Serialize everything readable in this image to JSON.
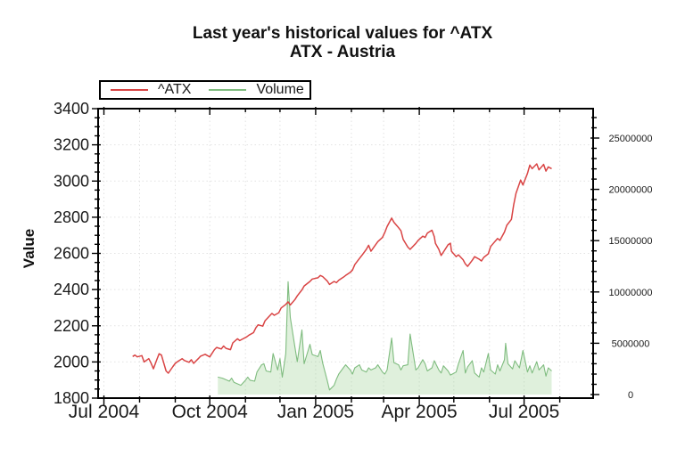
{
  "chart_data": {
    "type": "line",
    "title": "Last year's historical values for ^ATX",
    "subtitle": "ATX - Austria",
    "x_axis": {
      "type": "time",
      "range_start": "2004-06-26",
      "range_end": "2005-08-30",
      "major_ticks": [
        "Jul 2004",
        "Oct 2004",
        "Jan 2005",
        "Apr 2005",
        "Jul 2005"
      ],
      "major_tick_dates": [
        "2004-07-01",
        "2004-10-01",
        "2005-01-01",
        "2005-04-01",
        "2005-07-01"
      ],
      "minor_tick_interval": "1 month"
    },
    "y_left": {
      "label": "Value",
      "min": 1800,
      "max": 3400,
      "major_step": 200,
      "minor_step": 50,
      "tick_labels": [
        "1800",
        "2000",
        "2200",
        "2400",
        "2600",
        "2800",
        "3000",
        "3200",
        "3400"
      ]
    },
    "y_right": {
      "label": "",
      "min": 0,
      "max": 25000000,
      "major_step": 5000000,
      "minor_step": 1000000,
      "tick_labels": [
        "0",
        "5000000",
        "10000000",
        "15000000",
        "20000000",
        "25000000"
      ]
    },
    "grid": {
      "horizontal": "major",
      "vertical": "monthly",
      "style": "dotted",
      "color": "#e2e2e2"
    },
    "legend": {
      "position": "top-left",
      "entries": [
        {
          "label": "^ATX",
          "color": "#d94444"
        },
        {
          "label": "Volume",
          "color": "#7fbc7f"
        }
      ]
    },
    "series": [
      {
        "name": "^ATX",
        "axis": "left",
        "style": "line",
        "color": "#d94444",
        "points": [
          [
            "2004-07-26",
            2030
          ],
          [
            "2004-07-28",
            2038
          ],
          [
            "2004-07-30",
            2028
          ],
          [
            "2004-08-03",
            2035
          ],
          [
            "2004-08-05",
            2000
          ],
          [
            "2004-08-09",
            2018
          ],
          [
            "2004-08-11",
            1993
          ],
          [
            "2004-08-13",
            1962
          ],
          [
            "2004-08-16",
            2012
          ],
          [
            "2004-08-18",
            2045
          ],
          [
            "2004-08-20",
            2038
          ],
          [
            "2004-08-24",
            1950
          ],
          [
            "2004-08-26",
            1938
          ],
          [
            "2004-08-30",
            1975
          ],
          [
            "2004-09-01",
            1992
          ],
          [
            "2004-09-03",
            2002
          ],
          [
            "2004-09-07",
            2018
          ],
          [
            "2004-09-09",
            2008
          ],
          [
            "2004-09-13",
            1998
          ],
          [
            "2004-09-15",
            2012
          ],
          [
            "2004-09-17",
            1992
          ],
          [
            "2004-09-21",
            2018
          ],
          [
            "2004-09-23",
            2032
          ],
          [
            "2004-09-27",
            2042
          ],
          [
            "2004-09-29",
            2035
          ],
          [
            "2004-10-01",
            2028
          ],
          [
            "2004-10-05",
            2068
          ],
          [
            "2004-10-07",
            2080
          ],
          [
            "2004-10-11",
            2072
          ],
          [
            "2004-10-13",
            2088
          ],
          [
            "2004-10-15",
            2075
          ],
          [
            "2004-10-19",
            2068
          ],
          [
            "2004-10-21",
            2105
          ],
          [
            "2004-10-25",
            2128
          ],
          [
            "2004-10-27",
            2118
          ],
          [
            "2004-10-29",
            2125
          ],
          [
            "2004-11-02",
            2138
          ],
          [
            "2004-11-04",
            2148
          ],
          [
            "2004-11-08",
            2162
          ],
          [
            "2004-11-10",
            2188
          ],
          [
            "2004-11-12",
            2205
          ],
          [
            "2004-11-16",
            2198
          ],
          [
            "2004-11-18",
            2228
          ],
          [
            "2004-11-22",
            2255
          ],
          [
            "2004-11-24",
            2268
          ],
          [
            "2004-11-26",
            2258
          ],
          [
            "2004-11-30",
            2272
          ],
          [
            "2004-12-02",
            2298
          ],
          [
            "2004-12-06",
            2318
          ],
          [
            "2004-12-08",
            2332
          ],
          [
            "2004-12-10",
            2315
          ],
          [
            "2004-12-14",
            2345
          ],
          [
            "2004-12-16",
            2365
          ],
          [
            "2004-12-20",
            2398
          ],
          [
            "2004-12-22",
            2420
          ],
          [
            "2004-12-27",
            2445
          ],
          [
            "2004-12-29",
            2458
          ],
          [
            "2005-01-03",
            2465
          ],
          [
            "2005-01-05",
            2478
          ],
          [
            "2005-01-07",
            2472
          ],
          [
            "2005-01-11",
            2448
          ],
          [
            "2005-01-13",
            2428
          ],
          [
            "2005-01-17",
            2445
          ],
          [
            "2005-01-19",
            2438
          ],
          [
            "2005-01-21",
            2452
          ],
          [
            "2005-01-25",
            2468
          ],
          [
            "2005-01-27",
            2478
          ],
          [
            "2005-01-31",
            2495
          ],
          [
            "2005-02-02",
            2508
          ],
          [
            "2005-02-04",
            2538
          ],
          [
            "2005-02-08",
            2572
          ],
          [
            "2005-02-10",
            2588
          ],
          [
            "2005-02-14",
            2622
          ],
          [
            "2005-02-16",
            2645
          ],
          [
            "2005-02-18",
            2612
          ],
          [
            "2005-02-22",
            2648
          ],
          [
            "2005-02-24",
            2665
          ],
          [
            "2005-02-28",
            2688
          ],
          [
            "2005-03-02",
            2715
          ],
          [
            "2005-03-04",
            2748
          ],
          [
            "2005-03-08",
            2795
          ],
          [
            "2005-03-10",
            2772
          ],
          [
            "2005-03-14",
            2742
          ],
          [
            "2005-03-16",
            2725
          ],
          [
            "2005-03-18",
            2678
          ],
          [
            "2005-03-22",
            2635
          ],
          [
            "2005-03-24",
            2622
          ],
          [
            "2005-03-29",
            2655
          ],
          [
            "2005-03-31",
            2672
          ],
          [
            "2005-04-04",
            2695
          ],
          [
            "2005-04-06",
            2688
          ],
          [
            "2005-04-08",
            2712
          ],
          [
            "2005-04-12",
            2728
          ],
          [
            "2005-04-14",
            2692
          ],
          [
            "2005-04-15",
            2655
          ],
          [
            "2005-04-18",
            2622
          ],
          [
            "2005-04-20",
            2588
          ],
          [
            "2005-04-22",
            2608
          ],
          [
            "2005-04-26",
            2648
          ],
          [
            "2005-04-28",
            2656
          ],
          [
            "2005-04-29",
            2612
          ],
          [
            "2005-05-03",
            2582
          ],
          [
            "2005-05-05",
            2592
          ],
          [
            "2005-05-09",
            2565
          ],
          [
            "2005-05-11",
            2542
          ],
          [
            "2005-05-13",
            2528
          ],
          [
            "2005-05-17",
            2562
          ],
          [
            "2005-05-19",
            2582
          ],
          [
            "2005-05-23",
            2568
          ],
          [
            "2005-05-25",
            2558
          ],
          [
            "2005-05-27",
            2578
          ],
          [
            "2005-05-31",
            2598
          ],
          [
            "2005-06-02",
            2638
          ],
          [
            "2005-06-06",
            2668
          ],
          [
            "2005-06-08",
            2682
          ],
          [
            "2005-06-10",
            2672
          ],
          [
            "2005-06-14",
            2718
          ],
          [
            "2005-06-16",
            2755
          ],
          [
            "2005-06-20",
            2788
          ],
          [
            "2005-06-22",
            2868
          ],
          [
            "2005-06-24",
            2932
          ],
          [
            "2005-06-28",
            3005
          ],
          [
            "2005-06-30",
            2978
          ],
          [
            "2005-07-04",
            3042
          ],
          [
            "2005-07-06",
            3088
          ],
          [
            "2005-07-08",
            3068
          ],
          [
            "2005-07-12",
            3095
          ],
          [
            "2005-07-14",
            3062
          ],
          [
            "2005-07-18",
            3092
          ],
          [
            "2005-07-20",
            3055
          ],
          [
            "2005-07-22",
            3078
          ],
          [
            "2005-07-25",
            3068
          ]
        ]
      },
      {
        "name": "Volume",
        "axis": "right",
        "style": "area-line",
        "color": "#7fbc7f",
        "fill": "rgba(150,205,140,0.30)",
        "points": [
          [
            "2004-10-08",
            1700000
          ],
          [
            "2004-10-12",
            1600000
          ],
          [
            "2004-10-14",
            1500000
          ],
          [
            "2004-10-18",
            1300000
          ],
          [
            "2004-10-20",
            1600000
          ],
          [
            "2004-10-22",
            1200000
          ],
          [
            "2004-10-26",
            1000000
          ],
          [
            "2004-10-28",
            900000
          ],
          [
            "2004-11-01",
            1400000
          ],
          [
            "2004-11-03",
            1700000
          ],
          [
            "2004-11-05",
            1400000
          ],
          [
            "2004-11-09",
            1300000
          ],
          [
            "2004-11-11",
            2200000
          ],
          [
            "2004-11-15",
            2900000
          ],
          [
            "2004-11-17",
            3000000
          ],
          [
            "2004-11-19",
            2300000
          ],
          [
            "2004-11-23",
            2200000
          ],
          [
            "2004-11-25",
            4000000
          ],
          [
            "2004-11-29",
            2400000
          ],
          [
            "2004-12-01",
            3500000
          ],
          [
            "2004-12-03",
            1700000
          ],
          [
            "2004-12-06",
            4000000
          ],
          [
            "2004-12-08",
            11000000
          ],
          [
            "2004-12-10",
            7500000
          ],
          [
            "2004-12-14",
            4600000
          ],
          [
            "2004-12-16",
            3200000
          ],
          [
            "2004-12-20",
            6300000
          ],
          [
            "2004-12-22",
            3000000
          ],
          [
            "2004-12-27",
            4900000
          ],
          [
            "2004-12-29",
            3900000
          ],
          [
            "2005-01-03",
            3700000
          ],
          [
            "2005-01-05",
            4300000
          ],
          [
            "2005-01-07",
            3100000
          ],
          [
            "2005-01-11",
            1400000
          ],
          [
            "2005-01-13",
            450000
          ],
          [
            "2005-01-17",
            900000
          ],
          [
            "2005-01-19",
            1500000
          ],
          [
            "2005-01-21",
            2000000
          ],
          [
            "2005-01-25",
            2600000
          ],
          [
            "2005-01-27",
            2900000
          ],
          [
            "2005-01-31",
            2400000
          ],
          [
            "2005-02-02",
            2000000
          ],
          [
            "2005-02-04",
            2600000
          ],
          [
            "2005-02-08",
            2900000
          ],
          [
            "2005-02-10",
            2400000
          ],
          [
            "2005-02-14",
            2200000
          ],
          [
            "2005-02-16",
            2600000
          ],
          [
            "2005-02-18",
            2400000
          ],
          [
            "2005-02-22",
            2600000
          ],
          [
            "2005-02-24",
            2900000
          ],
          [
            "2005-02-28",
            2200000
          ],
          [
            "2005-03-02",
            2000000
          ],
          [
            "2005-03-04",
            2400000
          ],
          [
            "2005-03-08",
            5500000
          ],
          [
            "2005-03-10",
            3100000
          ],
          [
            "2005-03-14",
            2900000
          ],
          [
            "2005-03-16",
            2400000
          ],
          [
            "2005-03-18",
            2800000
          ],
          [
            "2005-03-22",
            2900000
          ],
          [
            "2005-03-24",
            5900000
          ],
          [
            "2005-03-29",
            2400000
          ],
          [
            "2005-03-31",
            2600000
          ],
          [
            "2005-04-04",
            3400000
          ],
          [
            "2005-04-06",
            3000000
          ],
          [
            "2005-04-08",
            2300000
          ],
          [
            "2005-04-12",
            2600000
          ],
          [
            "2005-04-14",
            3300000
          ],
          [
            "2005-04-18",
            2400000
          ],
          [
            "2005-04-20",
            2100000
          ],
          [
            "2005-04-22",
            2800000
          ],
          [
            "2005-04-26",
            2300000
          ],
          [
            "2005-04-28",
            1900000
          ],
          [
            "2005-05-03",
            2200000
          ],
          [
            "2005-05-05",
            3000000
          ],
          [
            "2005-05-09",
            4300000
          ],
          [
            "2005-05-11",
            2100000
          ],
          [
            "2005-05-13",
            2700000
          ],
          [
            "2005-05-17",
            3300000
          ],
          [
            "2005-05-19",
            2100000
          ],
          [
            "2005-05-23",
            1700000
          ],
          [
            "2005-05-25",
            2600000
          ],
          [
            "2005-05-27",
            2200000
          ],
          [
            "2005-05-31",
            4000000
          ],
          [
            "2005-06-02",
            2400000
          ],
          [
            "2005-06-06",
            2000000
          ],
          [
            "2005-06-08",
            2900000
          ],
          [
            "2005-06-10",
            2300000
          ],
          [
            "2005-06-14",
            3400000
          ],
          [
            "2005-06-15",
            5000000
          ],
          [
            "2005-06-17",
            3000000
          ],
          [
            "2005-06-21",
            2500000
          ],
          [
            "2005-06-23",
            3300000
          ],
          [
            "2005-06-27",
            2600000
          ],
          [
            "2005-06-30",
            4300000
          ],
          [
            "2005-07-04",
            2200000
          ],
          [
            "2005-07-06",
            2800000
          ],
          [
            "2005-07-08",
            2100000
          ],
          [
            "2005-07-12",
            3200000
          ],
          [
            "2005-07-14",
            2400000
          ],
          [
            "2005-07-18",
            2900000
          ],
          [
            "2005-07-20",
            1800000
          ],
          [
            "2005-07-22",
            2600000
          ],
          [
            "2005-07-25",
            2300000
          ]
        ]
      }
    ]
  }
}
